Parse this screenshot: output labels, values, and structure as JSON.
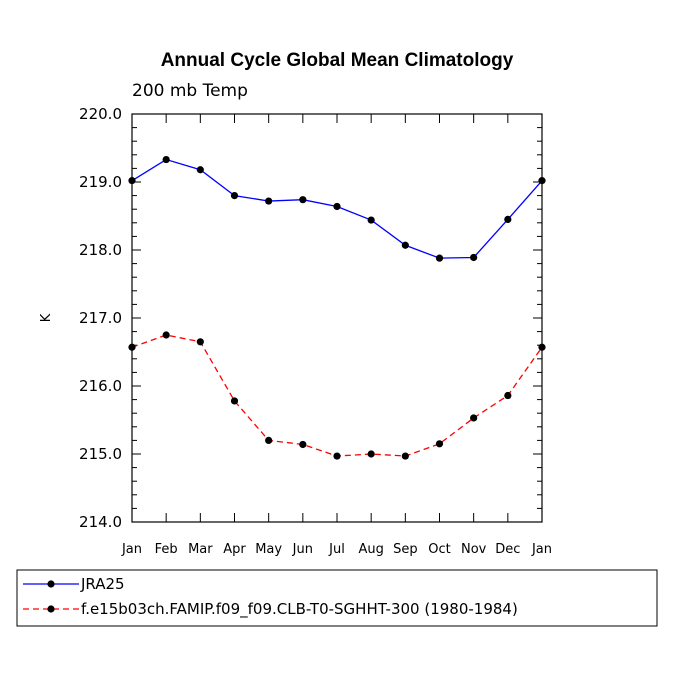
{
  "chart_data": {
    "type": "line",
    "title": "Annual Cycle Global Mean Climatology",
    "subtitle": "200 mb Temp",
    "xlabel": "",
    "ylabel": "K",
    "categories": [
      "Jan",
      "Feb",
      "Mar",
      "Apr",
      "May",
      "Jun",
      "Jul",
      "Aug",
      "Sep",
      "Oct",
      "Nov",
      "Dec",
      "Jan"
    ],
    "ylim": [
      214.0,
      220.0
    ],
    "yticks": [
      "214.0",
      "215.0",
      "216.0",
      "217.0",
      "218.0",
      "219.0",
      "220.0"
    ],
    "legend_position": "bottom",
    "series": [
      {
        "name": "JRA25",
        "color": "#0000ff",
        "dash": "solid",
        "values": [
          219.02,
          219.33,
          219.18,
          218.8,
          218.72,
          218.74,
          218.64,
          218.44,
          218.07,
          217.88,
          217.89,
          218.45,
          219.02
        ]
      },
      {
        "name": "f.e15b03ch.FAMIP.f09_f09.CLB-T0-SGHHT-300 (1980-1984)",
        "color": "#ff0000",
        "dash": "dashed",
        "values": [
          216.57,
          216.75,
          216.65,
          215.78,
          215.2,
          215.14,
          214.97,
          215.0,
          214.97,
          215.15,
          215.53,
          215.86,
          216.57
        ]
      }
    ]
  }
}
